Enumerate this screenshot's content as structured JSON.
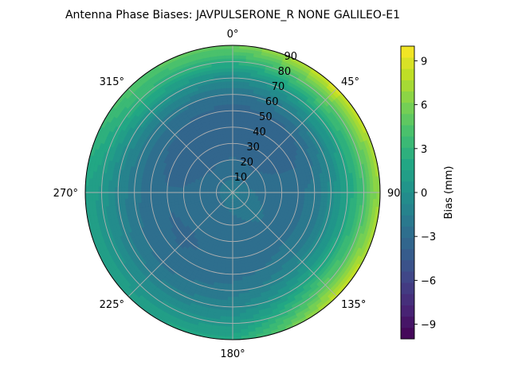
{
  "chart_data": {
    "type": "heatmap",
    "subtype": "polar-contour",
    "title": "Antenna Phase Biases: JAVPULSERONE_R  NONE GALILEO-E1",
    "angular_ticks": [
      {
        "deg": 0,
        "label": "0°"
      },
      {
        "deg": 45,
        "label": "45°"
      },
      {
        "deg": 90,
        "label": "90"
      },
      {
        "deg": 135,
        "label": "135°"
      },
      {
        "deg": 180,
        "label": "180°"
      },
      {
        "deg": 225,
        "label": "225°"
      },
      {
        "deg": 270,
        "label": "270°"
      },
      {
        "deg": 315,
        "label": "315°"
      }
    ],
    "radial_ticks": [
      10,
      20,
      30,
      40,
      50,
      60,
      70,
      80,
      90
    ],
    "radial_range": [
      0,
      90
    ],
    "angular_direction": "clockwise",
    "angular_zero": "top",
    "grid": true,
    "colorbar": {
      "label": "Bias (mm)",
      "range": [
        -10,
        10
      ],
      "ticks": [
        -9,
        -6,
        -3,
        0,
        3,
        6,
        9
      ],
      "levels": 26,
      "colormap": "viridis"
    },
    "surface_samples": {
      "angles_deg": [
        0,
        45,
        90,
        135,
        180,
        225,
        270,
        315
      ],
      "radius": [
        0,
        10,
        20,
        30,
        40,
        50,
        60,
        70,
        80,
        90
      ],
      "values": [
        [
          -1.2,
          -2.5,
          -3.0,
          -3.5,
          -3.8,
          -3.5,
          -2.5,
          -0.5,
          2.5,
          5.5
        ],
        [
          -1.2,
          -2.5,
          -3.2,
          -3.6,
          -3.8,
          -3.2,
          -1.5,
          1.5,
          5.0,
          9.0
        ],
        [
          -1.2,
          -2.2,
          -2.5,
          -2.6,
          -2.5,
          -2.0,
          -0.5,
          1.5,
          4.0,
          7.0
        ],
        [
          -1.2,
          -2.0,
          -2.2,
          -2.4,
          -2.5,
          -2.0,
          -0.5,
          2.0,
          5.0,
          8.5
        ],
        [
          -1.2,
          -2.2,
          -2.5,
          -2.7,
          -2.8,
          -2.6,
          -2.0,
          -1.0,
          0.5,
          2.0
        ],
        [
          -1.2,
          -2.5,
          -2.8,
          -3.0,
          -3.2,
          -3.0,
          -2.5,
          -1.5,
          0.0,
          1.5
        ],
        [
          -1.2,
          -2.5,
          -2.8,
          -3.0,
          -3.0,
          -2.8,
          -2.0,
          -1.0,
          0.5,
          1.5
        ],
        [
          -1.2,
          -2.5,
          -3.2,
          -3.6,
          -3.5,
          -3.0,
          -2.0,
          0.5,
          3.0,
          4.5
        ]
      ]
    },
    "colors": {
      "axis": "#000000",
      "grid": "#b0b0b0"
    }
  }
}
